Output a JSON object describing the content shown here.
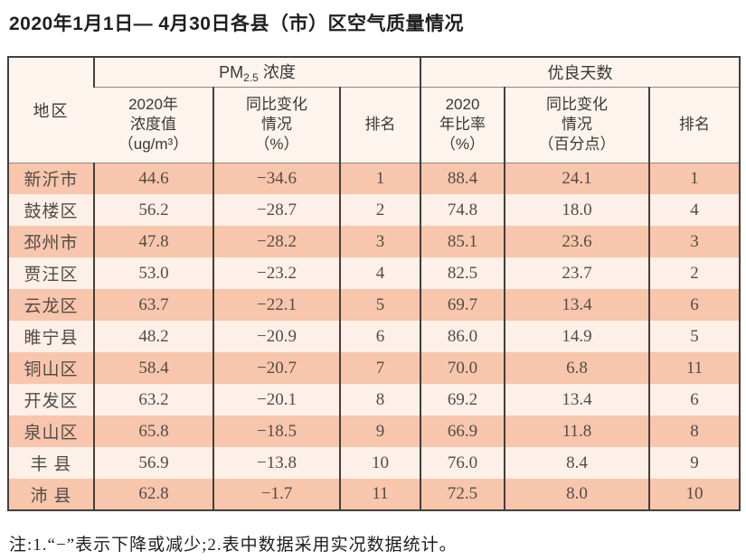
{
  "page": {
    "title": "2020年1月1日— 4月30日各县（市）区空气质量情况",
    "footnote": "注:1.“−”表示下降或减少;2.表中数据采用实况数据统计。"
  },
  "table": {
    "region_header": "地区",
    "pm_group": {
      "prefix": "PM",
      "sub": "2.5",
      "suffix": " 浓度"
    },
    "good_group_label": "优良天数",
    "subheaders": [
      "2020年\n浓度值\n（ug/m³）",
      "同比变化\n情况\n（%）",
      "排名",
      "2020\n年比率\n（%）",
      "同比变化\n情况\n（百分点）",
      "排名"
    ],
    "rows": [
      {
        "region": "新沂市",
        "values": [
          "44.6",
          "−34.6",
          "1",
          "88.4",
          "24.1",
          "1"
        ]
      },
      {
        "region": "鼓楼区",
        "values": [
          "56.2",
          "−28.7",
          "2",
          "74.8",
          "18.0",
          "4"
        ]
      },
      {
        "region": "邳州市",
        "values": [
          "47.8",
          "−28.2",
          "3",
          "85.1",
          "23.6",
          "3"
        ]
      },
      {
        "region": "贾汪区",
        "values": [
          "53.0",
          "−23.2",
          "4",
          "82.5",
          "23.7",
          "2"
        ]
      },
      {
        "region": "云龙区",
        "values": [
          "63.7",
          "−22.1",
          "5",
          "69.7",
          "13.4",
          "6"
        ]
      },
      {
        "region": "睢宁县",
        "values": [
          "48.2",
          "−20.9",
          "6",
          "86.0",
          "14.9",
          "5"
        ]
      },
      {
        "region": "铜山区",
        "values": [
          "58.4",
          "−20.7",
          "7",
          "70.0",
          "6.8",
          "11"
        ]
      },
      {
        "region": "开发区",
        "values": [
          "63.2",
          "−20.1",
          "8",
          "69.2",
          "13.4",
          "6"
        ]
      },
      {
        "region": "泉山区",
        "values": [
          "65.8",
          "−18.5",
          "9",
          "66.9",
          "11.8",
          "8"
        ]
      },
      {
        "region": "丰 县",
        "values": [
          "56.9",
          "−13.8",
          "10",
          "76.0",
          "8.4",
          "9"
        ]
      },
      {
        "region": "沛 县",
        "values": [
          "62.8",
          "−1.7",
          "11",
          "72.5",
          "8.0",
          "10"
        ]
      }
    ]
  },
  "colors": {
    "row_odd": "#f8c6ac",
    "row_even": "#fdf0e8",
    "header_bg": "#fcf4ed",
    "border": "#433f3c"
  }
}
